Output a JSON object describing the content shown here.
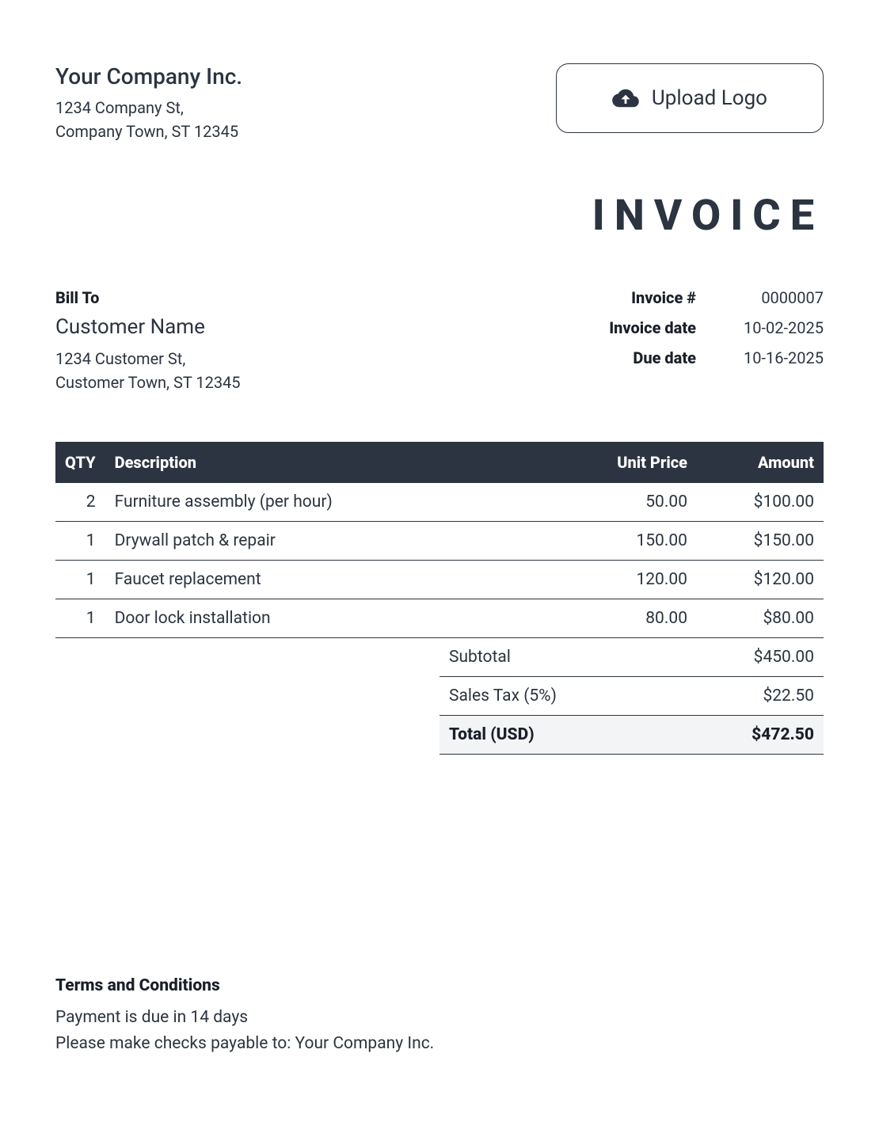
{
  "colors": {
    "text": "#2b3440",
    "header_bg": "#2b3440",
    "header_fg": "#ffffff",
    "total_bg": "#f3f4f5",
    "border": "#2b3440"
  },
  "company": {
    "name": "Your Company Inc.",
    "address_line1": "1234 Company St,",
    "address_line2": "Company Town, ST 12345"
  },
  "upload_logo": {
    "label": "Upload Logo",
    "icon": "cloud-upload-icon"
  },
  "title": "INVOICE",
  "bill_to": {
    "label": "Bill To",
    "name": "Customer Name",
    "address_line1": "1234 Customer St,",
    "address_line2": "Customer Town, ST 12345"
  },
  "meta": {
    "invoice_number_label": "Invoice #",
    "invoice_number": "0000007",
    "invoice_date_label": "Invoice date",
    "invoice_date": "10-02-2025",
    "due_date_label": "Due date",
    "due_date": "10-16-2025"
  },
  "columns": {
    "qty": "QTY",
    "description": "Description",
    "unit_price": "Unit Price",
    "amount": "Amount"
  },
  "items": [
    {
      "qty": "2",
      "description": "Furniture assembly (per hour)",
      "unit_price": "50.00",
      "amount": "$100.00"
    },
    {
      "qty": "1",
      "description": "Drywall patch & repair",
      "unit_price": "150.00",
      "amount": "$150.00"
    },
    {
      "qty": "1",
      "description": "Faucet replacement",
      "unit_price": "120.00",
      "amount": "$120.00"
    },
    {
      "qty": "1",
      "description": "Door lock installation",
      "unit_price": "80.00",
      "amount": "$80.00"
    }
  ],
  "totals": {
    "subtotal_label": "Subtotal",
    "subtotal": "$450.00",
    "tax_label": "Sales Tax (5%)",
    "tax": "$22.50",
    "grand_label": "Total (USD)",
    "grand": "$472.50"
  },
  "terms": {
    "title": "Terms and Conditions",
    "line1": "Payment is due in 14 days",
    "line2": "Please make checks payable to: Your Company Inc."
  }
}
